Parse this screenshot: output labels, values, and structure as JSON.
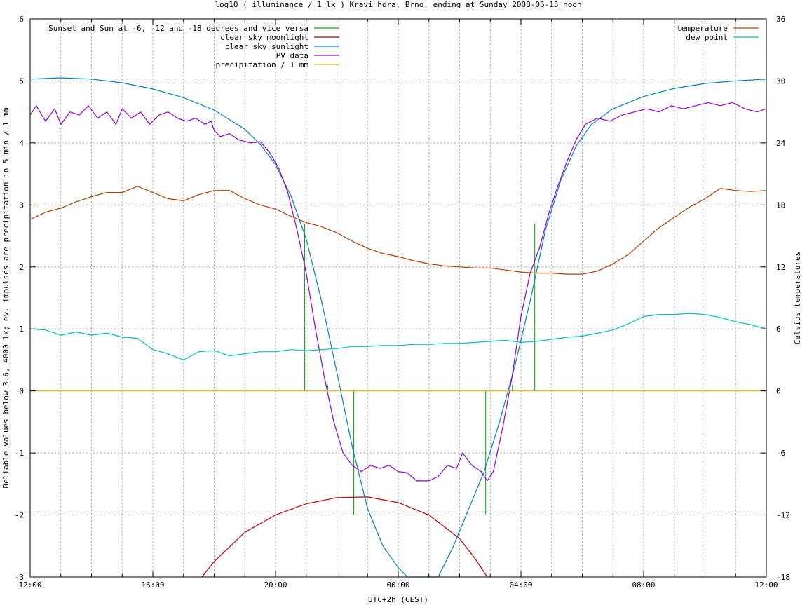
{
  "chart_data": {
    "type": "line",
    "title": "log10 ( illuminance / 1 lx ) Kravi hora, Brno, ending at Sunday 2008-06-15 noon",
    "xlabel": "UTC+2h (CEST)",
    "ylabel": "Reliable values below 3.6, 4000 lx; ev. impulses are precipitation in 5 min / 1 mm",
    "y2label": "Celsius temperatures",
    "x_unit": "hours since 12:00",
    "xlim": [
      0,
      24
    ],
    "ylim": [
      -3,
      6
    ],
    "y2lim": [
      -18,
      36
    ],
    "x_ticks": [
      {
        "x": 0,
        "label": "12:00"
      },
      {
        "x": 4,
        "label": "16:00"
      },
      {
        "x": 8,
        "label": "20:00"
      },
      {
        "x": 12,
        "label": "00:00"
      },
      {
        "x": 16,
        "label": "04:00"
      },
      {
        "x": 20,
        "label": "08:00"
      },
      {
        "x": 24,
        "label": "12:00"
      }
    ],
    "y_ticks": [
      "-3",
      "-2",
      "-1",
      "0",
      "1",
      "2",
      "3",
      "4",
      "5",
      "6"
    ],
    "y2_ticks": [
      "-18",
      "-12",
      "-6",
      "0",
      "6",
      "12",
      "18",
      "24",
      "30",
      "36"
    ],
    "grid": true,
    "legend_left_placement": "top-left",
    "legend_right_placement": "top-right",
    "series": [
      {
        "name": "Sunset and Sun at -6, -12 and -18 degrees and vice versa",
        "color": "#00b000",
        "style": "impulses",
        "points": [
          [
            8.95,
            2.7
          ],
          [
            9.7,
            0.1
          ],
          [
            10.55,
            -2.0
          ],
          [
            14.85,
            -2.0
          ],
          [
            15.72,
            0.1
          ],
          [
            16.45,
            2.7
          ]
        ]
      },
      {
        "name": "clear sky moonlight",
        "color": "#c00000",
        "axis": "y",
        "points": [
          [
            5.6,
            -3.0
          ],
          [
            6.0,
            -2.75
          ],
          [
            7.0,
            -2.28
          ],
          [
            8.0,
            -2.0
          ],
          [
            9.0,
            -1.82
          ],
          [
            10.0,
            -1.72
          ],
          [
            11.0,
            -1.71
          ],
          [
            12.0,
            -1.8
          ],
          [
            13.0,
            -2.0
          ],
          [
            14.0,
            -2.38
          ],
          [
            14.5,
            -2.7
          ],
          [
            14.9,
            -3.0
          ]
        ]
      },
      {
        "name": "clear sky sunlight",
        "color": "#0080c0",
        "axis": "y",
        "points": [
          [
            0.0,
            5.03
          ],
          [
            1.0,
            5.05
          ],
          [
            2.0,
            5.03
          ],
          [
            3.0,
            4.97
          ],
          [
            4.0,
            4.87
          ],
          [
            5.0,
            4.73
          ],
          [
            6.0,
            4.53
          ],
          [
            7.0,
            4.22
          ],
          [
            7.5,
            3.98
          ],
          [
            8.0,
            3.65
          ],
          [
            8.5,
            3.15
          ],
          [
            9.0,
            2.45
          ],
          [
            9.5,
            1.45
          ],
          [
            10.0,
            0.3
          ],
          [
            10.5,
            -0.9
          ],
          [
            11.0,
            -1.9
          ],
          [
            11.5,
            -2.5
          ],
          [
            12.0,
            -2.85
          ],
          [
            12.3,
            -3.0
          ],
          [
            13.3,
            -3.0
          ],
          [
            13.8,
            -2.5
          ],
          [
            14.3,
            -1.9
          ],
          [
            14.8,
            -1.3
          ],
          [
            15.3,
            -0.5
          ],
          [
            15.8,
            0.4
          ],
          [
            16.3,
            1.45
          ],
          [
            16.8,
            2.6
          ],
          [
            17.3,
            3.4
          ],
          [
            17.8,
            3.95
          ],
          [
            18.3,
            4.3
          ],
          [
            19.0,
            4.55
          ],
          [
            20.0,
            4.75
          ],
          [
            21.0,
            4.88
          ],
          [
            22.0,
            4.96
          ],
          [
            23.0,
            5.0
          ],
          [
            24.0,
            5.03
          ]
        ]
      },
      {
        "name": "PV data",
        "color": "#9400d3",
        "axis": "y",
        "points": [
          [
            0.0,
            4.45
          ],
          [
            0.2,
            4.6
          ],
          [
            0.5,
            4.35
          ],
          [
            0.8,
            4.55
          ],
          [
            1.0,
            4.3
          ],
          [
            1.3,
            4.5
          ],
          [
            1.6,
            4.45
          ],
          [
            1.9,
            4.6
          ],
          [
            2.2,
            4.4
          ],
          [
            2.5,
            4.5
          ],
          [
            2.8,
            4.3
          ],
          [
            3.0,
            4.55
          ],
          [
            3.3,
            4.4
          ],
          [
            3.6,
            4.5
          ],
          [
            3.9,
            4.3
          ],
          [
            4.2,
            4.45
          ],
          [
            4.5,
            4.5
          ],
          [
            4.8,
            4.4
          ],
          [
            5.1,
            4.35
          ],
          [
            5.4,
            4.4
          ],
          [
            5.7,
            4.3
          ],
          [
            5.9,
            4.35
          ],
          [
            6.0,
            4.2
          ],
          [
            6.2,
            4.1
          ],
          [
            6.5,
            4.15
          ],
          [
            6.8,
            4.05
          ],
          [
            7.2,
            4.0
          ],
          [
            7.5,
            4.02
          ],
          [
            7.8,
            3.85
          ],
          [
            8.1,
            3.6
          ],
          [
            8.4,
            3.2
          ],
          [
            8.7,
            2.6
          ],
          [
            9.0,
            1.9
          ],
          [
            9.3,
            1.0
          ],
          [
            9.6,
            0.2
          ],
          [
            9.9,
            -0.5
          ],
          [
            10.2,
            -1.0
          ],
          [
            10.5,
            -1.2
          ],
          [
            10.8,
            -1.3
          ],
          [
            11.1,
            -1.2
          ],
          [
            11.4,
            -1.25
          ],
          [
            11.7,
            -1.2
          ],
          [
            12.0,
            -1.3
          ],
          [
            12.3,
            -1.32
          ],
          [
            12.6,
            -1.45
          ],
          [
            13.0,
            -1.45
          ],
          [
            13.3,
            -1.38
          ],
          [
            13.6,
            -1.2
          ],
          [
            13.9,
            -1.25
          ],
          [
            14.1,
            -1.0
          ],
          [
            14.4,
            -1.2
          ],
          [
            14.7,
            -1.3
          ],
          [
            14.9,
            -1.45
          ],
          [
            15.1,
            -1.3
          ],
          [
            15.4,
            -0.6
          ],
          [
            15.7,
            0.2
          ],
          [
            16.0,
            1.2
          ],
          [
            16.3,
            1.9
          ],
          [
            16.6,
            2.3
          ],
          [
            16.9,
            2.85
          ],
          [
            17.2,
            3.3
          ],
          [
            17.5,
            3.7
          ],
          [
            17.8,
            4.05
          ],
          [
            18.1,
            4.3
          ],
          [
            18.5,
            4.4
          ],
          [
            18.9,
            4.35
          ],
          [
            19.3,
            4.45
          ],
          [
            19.7,
            4.5
          ],
          [
            20.1,
            4.55
          ],
          [
            20.5,
            4.5
          ],
          [
            20.9,
            4.6
          ],
          [
            21.3,
            4.55
          ],
          [
            21.7,
            4.6
          ],
          [
            22.1,
            4.65
          ],
          [
            22.5,
            4.6
          ],
          [
            22.9,
            4.65
          ],
          [
            23.3,
            4.55
          ],
          [
            23.7,
            4.5
          ],
          [
            24.0,
            4.55
          ]
        ]
      },
      {
        "name": "precipitation / 1 mm",
        "color": "#e0c000",
        "axis": "y",
        "points": [
          [
            0,
            0
          ],
          [
            24,
            0
          ]
        ]
      },
      {
        "name": "temperature",
        "color": "#b04000",
        "axis": "y2",
        "points": [
          [
            0.0,
            16.6
          ],
          [
            0.5,
            17.3
          ],
          [
            1.0,
            17.7
          ],
          [
            1.5,
            18.3
          ],
          [
            2.0,
            18.8
          ],
          [
            2.5,
            19.2
          ],
          [
            3.0,
            19.2
          ],
          [
            3.5,
            19.8
          ],
          [
            4.0,
            19.2
          ],
          [
            4.5,
            18.6
          ],
          [
            5.0,
            18.4
          ],
          [
            5.5,
            19.0
          ],
          [
            6.0,
            19.4
          ],
          [
            6.5,
            19.4
          ],
          [
            7.0,
            18.6
          ],
          [
            7.5,
            18.0
          ],
          [
            8.0,
            17.6
          ],
          [
            8.5,
            16.9
          ],
          [
            9.0,
            16.3
          ],
          [
            9.5,
            15.9
          ],
          [
            10.0,
            15.3
          ],
          [
            10.5,
            14.5
          ],
          [
            11.0,
            13.8
          ],
          [
            11.5,
            13.3
          ],
          [
            12.0,
            13.0
          ],
          [
            12.5,
            12.6
          ],
          [
            13.0,
            12.3
          ],
          [
            13.5,
            12.1
          ],
          [
            14.0,
            12.0
          ],
          [
            14.5,
            11.9
          ],
          [
            15.0,
            11.9
          ],
          [
            15.5,
            11.7
          ],
          [
            16.0,
            11.5
          ],
          [
            16.5,
            11.4
          ],
          [
            17.0,
            11.4
          ],
          [
            17.5,
            11.3
          ],
          [
            18.0,
            11.3
          ],
          [
            18.5,
            11.6
          ],
          [
            19.0,
            12.3
          ],
          [
            19.5,
            13.2
          ],
          [
            20.0,
            14.5
          ],
          [
            20.5,
            15.8
          ],
          [
            21.0,
            16.8
          ],
          [
            21.5,
            17.8
          ],
          [
            22.0,
            18.6
          ],
          [
            22.5,
            19.6
          ],
          [
            23.0,
            19.4
          ],
          [
            23.5,
            19.3
          ],
          [
            24.0,
            19.4
          ]
        ]
      },
      {
        "name": "dew point",
        "color": "#00c0c0",
        "axis": "y2",
        "points": [
          [
            0.0,
            6.0
          ],
          [
            0.5,
            5.9
          ],
          [
            1.0,
            5.4
          ],
          [
            1.5,
            5.7
          ],
          [
            2.0,
            5.4
          ],
          [
            2.5,
            5.6
          ],
          [
            3.0,
            5.2
          ],
          [
            3.5,
            5.1
          ],
          [
            4.0,
            4.0
          ],
          [
            4.5,
            3.6
          ],
          [
            5.0,
            3.0
          ],
          [
            5.5,
            3.8
          ],
          [
            6.0,
            3.9
          ],
          [
            6.5,
            3.4
          ],
          [
            7.0,
            3.6
          ],
          [
            7.5,
            3.8
          ],
          [
            8.0,
            3.8
          ],
          [
            8.5,
            4.0
          ],
          [
            9.0,
            3.9
          ],
          [
            9.5,
            4.0
          ],
          [
            10.0,
            4.1
          ],
          [
            10.5,
            4.3
          ],
          [
            11.0,
            4.3
          ],
          [
            11.5,
            4.4
          ],
          [
            12.0,
            4.4
          ],
          [
            12.5,
            4.5
          ],
          [
            13.0,
            4.5
          ],
          [
            13.5,
            4.6
          ],
          [
            14.0,
            4.6
          ],
          [
            14.5,
            4.7
          ],
          [
            15.0,
            4.8
          ],
          [
            15.5,
            4.9
          ],
          [
            16.0,
            4.7
          ],
          [
            16.5,
            4.8
          ],
          [
            17.0,
            5.0
          ],
          [
            17.5,
            5.2
          ],
          [
            18.0,
            5.3
          ],
          [
            18.5,
            5.6
          ],
          [
            19.0,
            5.9
          ],
          [
            19.5,
            6.5
          ],
          [
            20.0,
            7.2
          ],
          [
            20.5,
            7.4
          ],
          [
            21.0,
            7.4
          ],
          [
            21.5,
            7.5
          ],
          [
            22.0,
            7.4
          ],
          [
            22.5,
            7.1
          ],
          [
            23.0,
            6.7
          ],
          [
            23.5,
            6.4
          ],
          [
            24.0,
            6.0
          ]
        ]
      }
    ]
  }
}
